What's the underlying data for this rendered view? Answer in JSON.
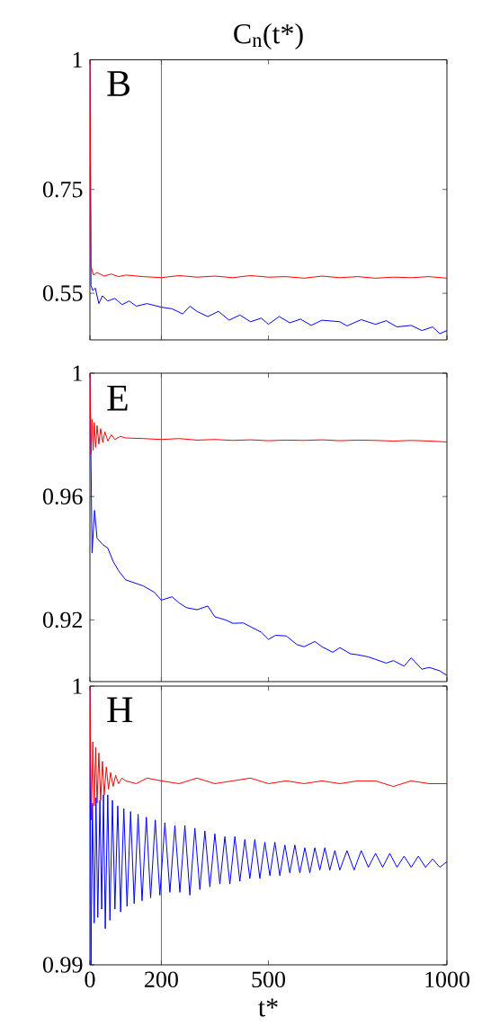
{
  "chart_data": [
    {
      "type": "line",
      "title": "C$_{n}$(t*)",
      "annotations": [
        "B"
      ],
      "xlim": [
        0,
        1000
      ],
      "xticks": [
        0,
        200,
        500,
        1000
      ],
      "ylim": [
        0.46,
        1
      ],
      "yticks": [
        0.55,
        0.75,
        1
      ],
      "tick_labels": "y",
      "ref_lines": [
        {
          "axis": "x",
          "value": 200,
          "color": "#404040"
        }
      ],
      "series": [
        {
          "color": "#0000ff",
          "x": [
            0,
            3,
            8,
            15,
            25,
            35,
            50,
            70,
            90,
            110,
            130,
            160,
            200,
            230,
            260,
            280,
            300,
            330,
            360,
            390,
            420,
            450,
            480,
            500,
            530,
            560,
            590,
            620,
            650,
            700,
            720,
            760,
            800,
            830,
            860,
            900,
            930,
            960,
            980,
            1000
          ],
          "values": [
            1.0,
            0.565,
            0.555,
            0.56,
            0.53,
            0.545,
            0.535,
            0.54,
            0.528,
            0.535,
            0.525,
            0.53,
            0.523,
            0.52,
            0.51,
            0.525,
            0.515,
            0.505,
            0.515,
            0.498,
            0.508,
            0.495,
            0.502,
            0.49,
            0.505,
            0.493,
            0.5,
            0.488,
            0.498,
            0.495,
            0.487,
            0.499,
            0.49,
            0.497,
            0.485,
            0.488,
            0.478,
            0.485,
            0.472,
            0.478
          ]
        },
        {
          "color": "#ff0000",
          "x": [
            0,
            3,
            10,
            20,
            40,
            60,
            80,
            100,
            150,
            200,
            250,
            300,
            350,
            400,
            450,
            500,
            550,
            600,
            650,
            700,
            750,
            800,
            850,
            900,
            950,
            1000
          ],
          "values": [
            1.0,
            0.602,
            0.585,
            0.59,
            0.583,
            0.587,
            0.582,
            0.585,
            0.582,
            0.58,
            0.584,
            0.581,
            0.583,
            0.58,
            0.584,
            0.581,
            0.582,
            0.579,
            0.583,
            0.58,
            0.582,
            0.579,
            0.581,
            0.58,
            0.582,
            0.579
          ]
        }
      ]
    },
    {
      "type": "line",
      "annotations": [
        "E"
      ],
      "xlim": [
        0,
        1000
      ],
      "xticks": [
        0,
        200,
        500,
        1000
      ],
      "ylim": [
        0.9,
        1
      ],
      "yticks": [
        0.92,
        0.96,
        1
      ],
      "tick_labels": "y",
      "ref_lines": [
        {
          "axis": "x",
          "value": 200,
          "color": "#404040"
        }
      ],
      "series": [
        {
          "color": "#0000ff",
          "x": [
            0,
            6,
            13,
            20,
            35,
            50,
            65,
            80,
            100,
            150,
            180,
            200,
            230,
            250,
            270,
            300,
            330,
            350,
            380,
            400,
            430,
            450,
            480,
            500,
            520,
            550,
            580,
            600,
            630,
            650,
            680,
            700,
            730,
            750,
            780,
            800,
            830,
            850,
            880,
            900,
            930,
            950,
            980,
            1000
          ],
          "values": [
            1.0,
            0.9417,
            0.9555,
            0.9465,
            0.9445,
            0.9433,
            0.939,
            0.936,
            0.933,
            0.931,
            0.929,
            0.9264,
            0.9275,
            0.9255,
            0.924,
            0.9233,
            0.9245,
            0.921,
            0.92,
            0.9189,
            0.919,
            0.9178,
            0.916,
            0.9137,
            0.915,
            0.9148,
            0.912,
            0.9113,
            0.913,
            0.9113,
            0.9095,
            0.911,
            0.909,
            0.9087,
            0.908,
            0.9072,
            0.906,
            0.9068,
            0.905,
            0.9077,
            0.904,
            0.9046,
            0.9035,
            0.902
          ]
        },
        {
          "color": "#ff0000",
          "x": [
            0,
            3,
            6,
            9,
            12,
            16,
            20,
            25,
            30,
            36,
            42,
            50,
            60,
            70,
            85,
            100,
            150,
            200,
            250,
            300,
            350,
            400,
            450,
            500,
            550,
            600,
            650,
            700,
            750,
            800,
            850,
            900,
            950,
            1000
          ],
          "values": [
            1.0,
            0.9737,
            0.985,
            0.975,
            0.984,
            0.976,
            0.983,
            0.977,
            0.982,
            0.9775,
            0.981,
            0.978,
            0.98,
            0.9785,
            0.9795,
            0.979,
            0.9788,
            0.9785,
            0.9788,
            0.9783,
            0.9785,
            0.9782,
            0.9784,
            0.9781,
            0.9783,
            0.9782,
            0.9784,
            0.9781,
            0.9783,
            0.9782,
            0.978,
            0.9782,
            0.978,
            0.9777
          ]
        }
      ]
    },
    {
      "type": "line",
      "annotations": [
        "H"
      ],
      "xlabel": "t*",
      "xlim": [
        0,
        1000
      ],
      "xticks": [
        0,
        200,
        500,
        1000
      ],
      "ylim": [
        0.99,
        1
      ],
      "yticks": [
        0.99,
        1
      ],
      "ref_lines": [
        {
          "axis": "x",
          "value": 200,
          "color": "#404040"
        }
      ],
      "series": [
        {
          "color": "#0000ff",
          "x": [
            0,
            3,
            7,
            12,
            17,
            22,
            28,
            33,
            38,
            43,
            50,
            56,
            63,
            70,
            78,
            86,
            95,
            104,
            114,
            124,
            135,
            146,
            158,
            170,
            183,
            196,
            210,
            224,
            238,
            252,
            266,
            280,
            294,
            308,
            322,
            336,
            350,
            364,
            378,
            392,
            406,
            420,
            434,
            448,
            462,
            476,
            490,
            504,
            518,
            532,
            546,
            560,
            574,
            588,
            602,
            616,
            630,
            644,
            658,
            672,
            686,
            700,
            720,
            740,
            760,
            780,
            800,
            820,
            840,
            860,
            880,
            900,
            920,
            940,
            960,
            980,
            1000
          ],
          "values": [
            1.0,
            0.99,
            0.9958,
            0.9915,
            0.996,
            0.9917,
            0.9959,
            0.992,
            0.9961,
            0.9913,
            0.9961,
            0.9916,
            0.9959,
            0.992,
            0.9957,
            0.9919,
            0.9956,
            0.9921,
            0.9955,
            0.9922,
            0.9954,
            0.9923,
            0.9953,
            0.9924,
            0.9952,
            0.9925,
            0.9951,
            0.9926,
            0.995,
            0.9926,
            0.995,
            0.9925,
            0.9949,
            0.9927,
            0.9948,
            0.9928,
            0.9947,
            0.9929,
            0.9946,
            0.9929,
            0.9946,
            0.993,
            0.9945,
            0.9931,
            0.9945,
            0.9931,
            0.9944,
            0.9932,
            0.9944,
            0.9932,
            0.9943,
            0.9933,
            0.9943,
            0.9933,
            0.9942,
            0.9933,
            0.9942,
            0.9934,
            0.9942,
            0.9934,
            0.9941,
            0.9934,
            0.9941,
            0.9934,
            0.9941,
            0.9935,
            0.994,
            0.9935,
            0.994,
            0.9935,
            0.9939,
            0.9935,
            0.9939,
            0.9935,
            0.9938,
            0.9935,
            0.9937
          ]
        },
        {
          "color": "#ff0000",
          "x": [
            0,
            4,
            8,
            12,
            16,
            20,
            25,
            30,
            35,
            40,
            46,
            52,
            58,
            65,
            72,
            80,
            90,
            100,
            130,
            160,
            200,
            250,
            300,
            350,
            400,
            450,
            500,
            550,
            600,
            650,
            700,
            750,
            800,
            850,
            900,
            950,
            1000
          ],
          "values": [
            1.0,
            0.9952,
            0.998,
            0.9957,
            0.9978,
            0.9958,
            0.9976,
            0.9959,
            0.9973,
            0.9961,
            0.9971,
            0.9963,
            0.9969,
            0.9964,
            0.9968,
            0.9965,
            0.9967,
            0.9966,
            0.9965,
            0.9967,
            0.9966,
            0.9965,
            0.9967,
            0.9965,
            0.9966,
            0.9967,
            0.9965,
            0.9966,
            0.9965,
            0.9966,
            0.9965,
            0.9966,
            0.9966,
            0.9964,
            0.9966,
            0.9965,
            0.9965
          ]
        }
      ]
    }
  ]
}
